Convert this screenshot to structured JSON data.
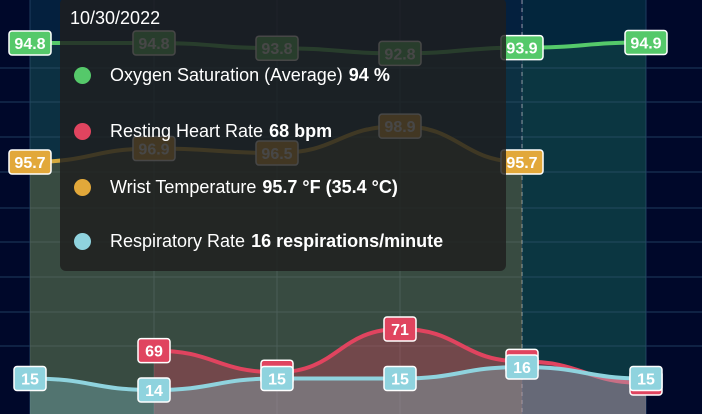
{
  "chart_data": {
    "type": "line",
    "x": [
      "",
      "",
      "",
      "",
      "",
      ""
    ],
    "series": [
      {
        "name": "Oxygen Saturation (Average)",
        "color": "#55c96a",
        "values": [
          94.8,
          94.8,
          93.8,
          92.8,
          93.9,
          94.9
        ],
        "labels": [
          "94.8",
          "94.8",
          "93.8",
          "92.8",
          "93.9",
          "94.9"
        ]
      },
      {
        "name": "Wrist Temperature",
        "color": "#e2a83a",
        "values": [
          95.7,
          96.9,
          96.5,
          98.9,
          95.7,
          null
        ],
        "labels": [
          "95.7",
          "96.9",
          "96.5",
          "98.9",
          "95.7",
          ""
        ]
      },
      {
        "name": "Resting Heart Rate",
        "color": "#e0445f",
        "values": [
          null,
          69,
          67,
          71,
          68,
          66
        ],
        "labels": [
          "",
          "69",
          "67",
          "71",
          "68",
          "66"
        ]
      },
      {
        "name": "Respiratory Rate",
        "color": "#8fd3de",
        "values": [
          15,
          14,
          15,
          15,
          16,
          15
        ],
        "labels": [
          "15",
          "14",
          "15",
          "15",
          "16",
          "15"
        ]
      }
    ],
    "grid": true,
    "highlight_index": 4
  },
  "tooltip": {
    "date": "10/30/2022",
    "rows": [
      {
        "name": "Oxygen Saturation (Average)",
        "value": "94 %",
        "color": "#55c96a"
      },
      {
        "name": "Resting Heart Rate",
        "value": "68 bpm",
        "color": "#e0445f"
      },
      {
        "name": "Wrist Temperature",
        "value": "95.7 °F (35.4 °C)",
        "color": "#e2a83a"
      },
      {
        "name": "Respiratory Rate",
        "value": "16 respirations/minute",
        "color": "#8fd3de"
      }
    ]
  }
}
